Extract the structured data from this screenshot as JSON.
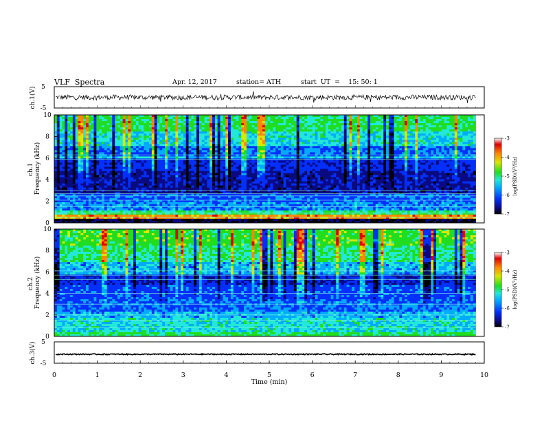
{
  "header": {
    "title": "VLF  Spectra",
    "date": "Apr. 12, 2017",
    "station": "station= ATH",
    "start": "start  UT  =    15: 50: 1"
  },
  "colors": {
    "colormap": [
      "#000000",
      "#0a0a80",
      "#0030ff",
      "#00aaff",
      "#22e8d8",
      "#20dd20",
      "#d8e800",
      "#ff8800",
      "#e00000",
      "#ffffff"
    ],
    "trace": "#000000",
    "axis": "#000000"
  },
  "chart_data": [
    {
      "type": "line",
      "id": "ch1",
      "ylabel": "ch.1(V)",
      "yticks": [
        "5",
        "-5"
      ],
      "ylim": [
        -5,
        5
      ],
      "xlim": [
        0,
        10
      ],
      "mean": 0.0,
      "amplitude": 1.2,
      "note": "noisy waveform centred near 0 V"
    },
    {
      "type": "heatmap",
      "id": "ch1-spectrogram",
      "ylabel": "ch.1\nFrequency  (kHz)",
      "ylabel_lines": [
        "ch.1",
        "Frequency  (kHz)"
      ],
      "yticks": [
        "0",
        "2",
        "4",
        "6",
        "8",
        "10"
      ],
      "ylim": [
        0,
        10
      ],
      "xlim": [
        0,
        9.8
      ],
      "colorbar": {
        "label": "log(PSD)(V²/Hz)",
        "ticks": [
          "-3",
          "-4",
          "-5",
          "-6",
          "-7"
        ],
        "range": [
          -7,
          -3
        ]
      },
      "bands": [
        {
          "from": 0.0,
          "to": 0.35,
          "level": 0.05
        },
        {
          "from": 0.35,
          "to": 0.7,
          "level": 0.85
        },
        {
          "from": 0.7,
          "to": 1.2,
          "level": 0.55
        },
        {
          "from": 1.2,
          "to": 2.0,
          "level": 0.38
        },
        {
          "from": 2.0,
          "to": 2.7,
          "level": 0.32
        },
        {
          "from": 2.7,
          "to": 4.9,
          "level": 0.16
        },
        {
          "from": 4.9,
          "to": 5.9,
          "level": 0.24
        },
        {
          "from": 5.9,
          "to": 6.2,
          "level": 0.45
        },
        {
          "from": 6.2,
          "to": 7.2,
          "level": 0.34
        },
        {
          "from": 7.2,
          "to": 8.5,
          "level": 0.48
        },
        {
          "from": 8.5,
          "to": 10.0,
          "level": 0.58
        }
      ],
      "lines_khz": [
        0.5,
        0.9,
        1.5,
        2.1,
        2.5,
        2.7,
        3.0,
        5.9,
        6.3
      ]
    },
    {
      "type": "heatmap",
      "id": "ch2-spectrogram",
      "ylabel": "ch.2\nFrequency  (kHz)",
      "ylabel_lines": [
        "ch.2",
        "Frequency  (kHz)"
      ],
      "yticks": [
        "0",
        "2",
        "4",
        "6",
        "8",
        "10"
      ],
      "ylim": [
        0,
        10
      ],
      "xlim": [
        0,
        9.8
      ],
      "colorbar": {
        "label": "log(PSD)(V²/Hz)",
        "ticks": [
          "-3",
          "-4",
          "-5",
          "-6",
          "-7"
        ],
        "range": [
          -7,
          -3
        ]
      },
      "bands": [
        {
          "from": 0.0,
          "to": 0.4,
          "level": 0.58
        },
        {
          "from": 0.4,
          "to": 1.8,
          "level": 0.48
        },
        {
          "from": 1.8,
          "to": 2.3,
          "level": 0.42
        },
        {
          "from": 2.3,
          "to": 3.4,
          "level": 0.34
        },
        {
          "from": 3.4,
          "to": 4.8,
          "level": 0.3
        },
        {
          "from": 4.8,
          "to": 5.7,
          "level": 0.22
        },
        {
          "from": 5.7,
          "to": 7.0,
          "level": 0.42
        },
        {
          "from": 7.0,
          "to": 8.5,
          "level": 0.55
        },
        {
          "from": 8.5,
          "to": 10.0,
          "level": 0.62
        }
      ],
      "lines_khz": [
        0.8,
        1.5,
        2.0,
        3.0,
        4.0,
        5.3,
        5.7,
        6.1
      ]
    },
    {
      "type": "line",
      "id": "ch3",
      "ylabel": "ch.3(V)",
      "yticks": [
        "5",
        "-5"
      ],
      "ylim": [
        -5,
        5
      ],
      "xlim": [
        0,
        10
      ],
      "mean": -0.8,
      "amplitude": 0.25,
      "note": "nearly flat trace just below 0 V"
    }
  ],
  "xaxis": {
    "label": "Time  (min)",
    "ticks": [
      "0",
      "1",
      "2",
      "3",
      "4",
      "5",
      "6",
      "7",
      "8",
      "9",
      "10"
    ],
    "range": [
      0,
      10
    ]
  }
}
